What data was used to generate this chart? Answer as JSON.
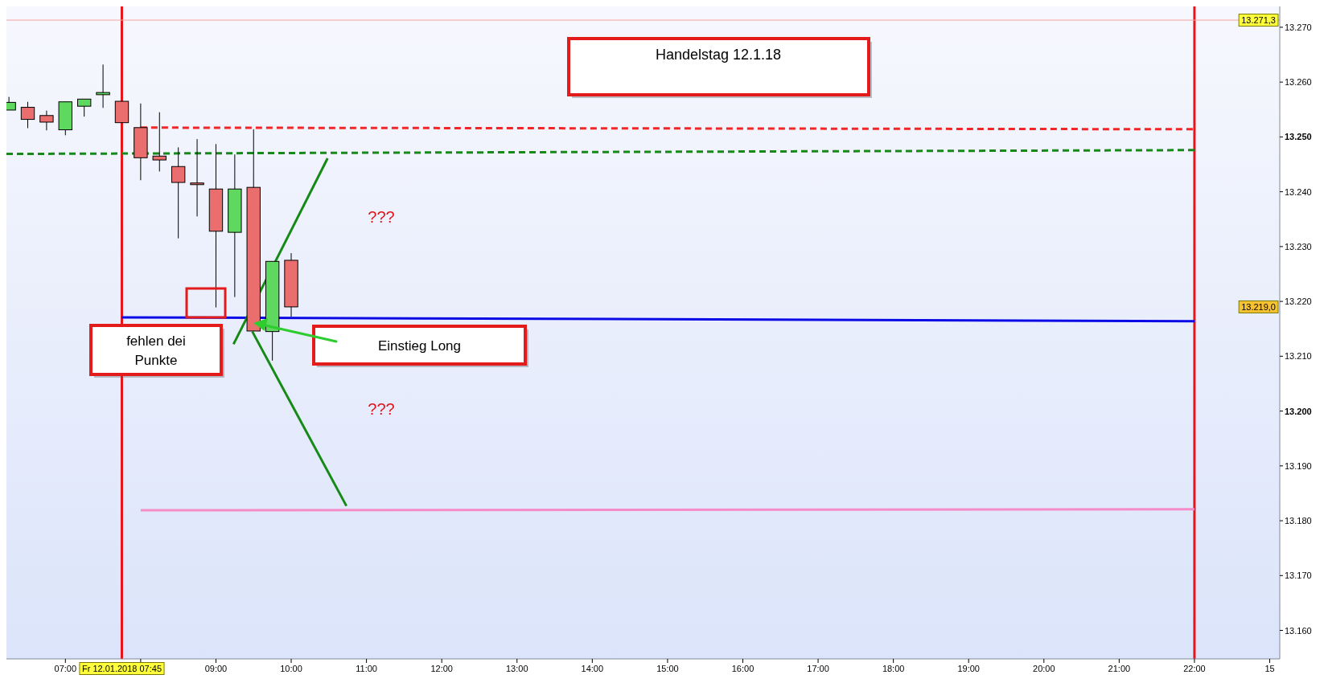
{
  "chart_data": {
    "type": "candlestick",
    "title": "Handelstag 12.1.18",
    "x": [
      "2018-01-12T06:15",
      "2018-01-12T06:30",
      "2018-01-12T06:45",
      "2018-01-12T07:00",
      "2018-01-12T07:15",
      "2018-01-12T07:30",
      "2018-01-12T07:45",
      "2018-01-12T08:00",
      "2018-01-12T08:15",
      "2018-01-12T08:30",
      "2018-01-12T08:45",
      "2018-01-12T09:00",
      "2018-01-12T09:15",
      "2018-01-12T09:30",
      "2018-01-12T09:45",
      "2018-01-12T10:00"
    ],
    "ohlc": [
      [
        13254.9,
        13257.3,
        13254.9,
        13256.3
      ],
      [
        13255.4,
        13256.4,
        13251.6,
        13253.2
      ],
      [
        13253.9,
        13254.8,
        13251.2,
        13252.7
      ],
      [
        13251.3,
        13256.4,
        13250.3,
        13256.4
      ],
      [
        13255.6,
        13256.9,
        13253.7,
        13256.9
      ],
      [
        13257.7,
        13263.2,
        13255.3,
        13258.1
      ],
      [
        13256.5,
        13256.5,
        13252.6,
        13252.6
      ],
      [
        13251.7,
        13256.1,
        13242.1,
        13246.2
      ],
      [
        13246.5,
        13254.5,
        13243.7,
        13245.8
      ],
      [
        13244.6,
        13248.1,
        13231.5,
        13241.7
      ],
      [
        13241.6,
        13249.6,
        13235.5,
        13241.3
      ],
      [
        13240.5,
        13248.7,
        13218.9,
        13232.8
      ],
      [
        13232.6,
        13246.8,
        13220.8,
        13240.5
      ],
      [
        13240.8,
        13251.4,
        13214.6,
        13214.6
      ],
      [
        13214.5,
        13227.3,
        13209.2,
        13227.3
      ],
      [
        13227.5,
        13228.8,
        13217.2,
        13219.0
      ]
    ],
    "colors": [
      "#5ed85e",
      "#eb6e6e",
      "#eb6e6e",
      "#5ed85e",
      "#5ed85e",
      "#5ed85e",
      "#eb6e6e",
      "#eb6e6e",
      "#eb6e6e",
      "#eb6e6e",
      "#eb6e6e",
      "#eb6e6e",
      "#5ed85e",
      "#eb6e6e",
      "#5ed85e",
      "#eb6e6e"
    ],
    "series": [
      {
        "type": "line",
        "x": [
          "2018-01-12T08:00",
          "2018-01-12T22:00"
        ],
        "values": [
          13251.7,
          13251.4
        ],
        "color": "#f22626",
        "line_style": "dashed"
      },
      {
        "type": "line",
        "x": [
          "2018-01-12T06:13",
          "2018-01-12T22:00"
        ],
        "values": [
          13246.9,
          13247.6
        ],
        "color": "#17891a",
        "line_style": "dashed"
      },
      {
        "type": "line",
        "x": [
          "2018-01-12T07:45",
          "2018-01-12T22:00"
        ],
        "values": [
          13217.1,
          13216.4
        ],
        "color": "#0a0ae6",
        "line_style": "solid"
      },
      {
        "type": "line",
        "x": [
          "2018-01-12T08:00",
          "2018-01-12T22:00"
        ],
        "values": [
          13181.9,
          13182.1
        ],
        "color": "#f58cc8",
        "line_style": "solid"
      },
      {
        "type": "line",
        "x": [
          "2018-01-12T09:14",
          "2018-01-12T10:29"
        ],
        "values": [
          13212.2,
          13246.1
        ],
        "color": "#168a16",
        "line_style": "solid"
      },
      {
        "type": "line",
        "x": [
          "2018-01-12T09:29",
          "2018-01-12T10:44"
        ],
        "values": [
          13214.5,
          13182.7
        ],
        "color": "#168a16",
        "line_style": "solid"
      }
    ],
    "xlim": [
      "2018-01-12T06:13",
      "2018-01-12T23:08"
    ],
    "xticks": [
      {
        "value": "2018-01-12T07:00",
        "label": "07:00"
      },
      {
        "value": "2018-01-12T08:00",
        "label": null
      },
      {
        "value": "2018-01-12T09:00",
        "label": "09:00"
      },
      {
        "value": "2018-01-12T10:00",
        "label": "10:00"
      },
      {
        "value": "2018-01-12T11:00",
        "label": "11:00"
      },
      {
        "value": "2018-01-12T12:00",
        "label": "12:00"
      },
      {
        "value": "2018-01-12T13:00",
        "label": "13:00"
      },
      {
        "value": "2018-01-12T14:00",
        "label": "14:00"
      },
      {
        "value": "2018-01-12T15:00",
        "label": "15:00"
      },
      {
        "value": "2018-01-12T16:00",
        "label": "16:00"
      },
      {
        "value": "2018-01-12T17:00",
        "label": "17:00"
      },
      {
        "value": "2018-01-12T18:00",
        "label": "18:00"
      },
      {
        "value": "2018-01-12T19:00",
        "label": "19:00"
      },
      {
        "value": "2018-01-12T20:00",
        "label": "20:00"
      },
      {
        "value": "2018-01-12T21:00",
        "label": "21:00"
      },
      {
        "value": "2018-01-12T22:00",
        "label": "22:00"
      },
      {
        "value": "2018-01-12T23:00",
        "label": "15"
      }
    ],
    "ylim": [
      13154.8,
      13273.8
    ],
    "yticks": [
      {
        "value": 13160,
        "label": "13.160"
      },
      {
        "value": 13170,
        "label": "13.170"
      },
      {
        "value": 13180,
        "label": "13.180"
      },
      {
        "value": 13190,
        "label": "13.190"
      },
      {
        "value": 13200,
        "label": "13.200"
      },
      {
        "value": 13210,
        "label": "13.210"
      },
      {
        "value": 13220,
        "label": "13.220"
      },
      {
        "value": 13230,
        "label": "13.230"
      },
      {
        "value": 13240,
        "label": "13.240"
      },
      {
        "value": 13250,
        "label": "13.250"
      },
      {
        "value": 13260,
        "label": "13.260"
      },
      {
        "value": 13270,
        "label": "13.270"
      }
    ],
    "ref_lines": [
      {
        "axis": "x",
        "value": "2018-01-12T07:45",
        "label": "Fr 12.01.2018 07:45",
        "color": "#e8141b"
      },
      {
        "axis": "x",
        "value": "2018-01-12T22:00",
        "color": "#e8141b"
      },
      {
        "axis": "y",
        "value": 13271.3,
        "label": "13.271,3",
        "color": "#f3a3a3"
      }
    ],
    "annotations": [
      "fehlen dei Punkte",
      "Einstieg Long",
      "???",
      "???",
      "13.219,0"
    ]
  }
}
